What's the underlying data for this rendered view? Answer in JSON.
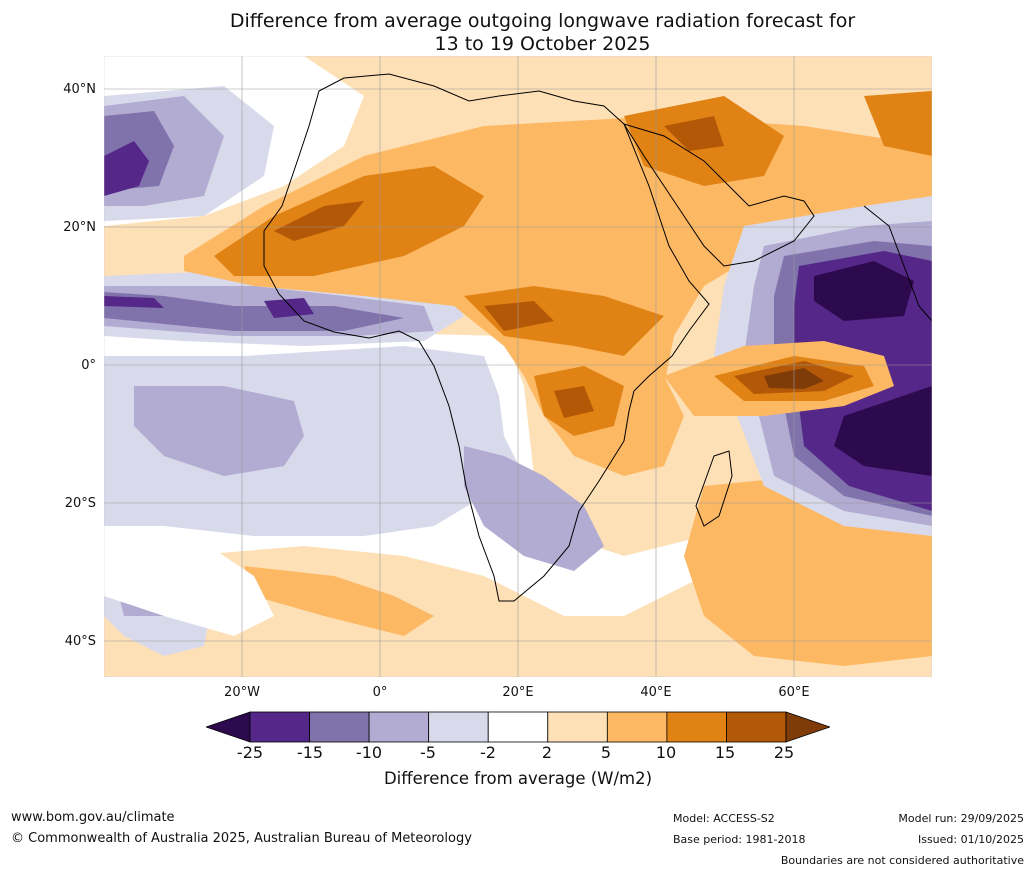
{
  "title": {
    "line1": "Difference from average outgoing longwave radiation forecast for",
    "line2": "13 to 19 October 2025"
  },
  "map": {
    "lat_labels": [
      "40°N",
      "20°N",
      "0°",
      "20°S",
      "40°S"
    ],
    "lon_labels": [
      "20°W",
      "0°",
      "20°E",
      "40°E",
      "60°E"
    ]
  },
  "colorbar": {
    "ticks": [
      "-25",
      "-15",
      "-10",
      "-5",
      "-2",
      "2",
      "5",
      "10",
      "15",
      "25"
    ],
    "colors": [
      "#2d0a4e",
      "#542788",
      "#8073ac",
      "#b2abd2",
      "#d8daeb",
      "#ffffff",
      "#fee0b6",
      "#fdb863",
      "#e08214",
      "#b35806",
      "#7f3b08"
    ],
    "label": "Difference from average (W/m2)"
  },
  "footer": {
    "website": "www.bom.gov.au/climate",
    "copyright": "© Commonwealth of Australia 2025, Australian Bureau of Meteorology",
    "model": "Model: ACCESS-S2",
    "base_period": "Base period: 1981-2018",
    "model_run": "Model run: 29/09/2025",
    "issued": "Issued: 01/10/2025",
    "disclaimer": "Boundaries are not considered authoritative"
  }
}
